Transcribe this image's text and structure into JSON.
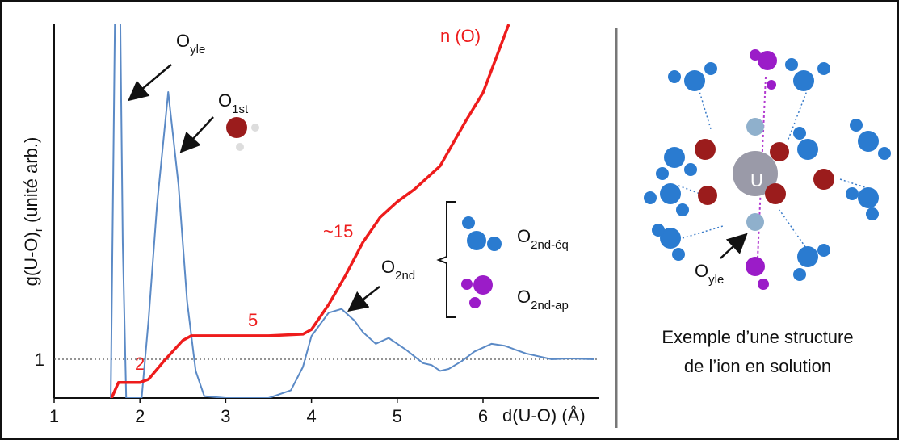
{
  "chart_data": {
    "type": "line",
    "ylabel": {
      "text": "g(U-O)",
      "sub": "r",
      "after": " (unité arb.)"
    },
    "xlabel": "d(U-O) (Å)",
    "xlim": [
      1,
      7.35
    ],
    "xticks": [
      1,
      2,
      3,
      4,
      5,
      6
    ],
    "ylim": [
      0,
      9.65
    ],
    "yticks": [
      1
    ],
    "y2lim": [
      1,
      25
    ],
    "series": [
      {
        "color": "#5b8ac6",
        "x": [
          1.66,
          1.72,
          1.76,
          1.8,
          1.84,
          2.0,
          2.02,
          2.1,
          2.2,
          2.33,
          2.45,
          2.55,
          2.65,
          2.75,
          3.0,
          3.5,
          3.76,
          3.9,
          4.0,
          4.2,
          4.35,
          4.5,
          4.6,
          4.75,
          4.9,
          5.1,
          5.3,
          5.4,
          5.5,
          5.6,
          5.75,
          5.9,
          6.1,
          6.25,
          6.5,
          6.8,
          7.0,
          7.3
        ],
        "values": [
          0,
          12,
          12,
          4,
          0,
          0,
          0,
          2,
          5,
          7.9,
          5.5,
          2.5,
          0.7,
          0.05,
          0,
          0,
          0.2,
          0.8,
          1.6,
          2.2,
          2.3,
          2.0,
          1.7,
          1.4,
          1.55,
          1.25,
          0.9,
          0.85,
          0.7,
          0.75,
          0.95,
          1.2,
          1.4,
          1.35,
          1.15,
          1.0,
          1.02,
          1.0
        ]
      },
      {
        "name": "n (O)",
        "color": "#ee1c1c",
        "axis": "y2",
        "x": [
          1.67,
          1.75,
          2.0,
          2.1,
          2.3,
          2.5,
          2.6,
          3.0,
          3.5,
          3.9,
          4.0,
          4.2,
          4.4,
          4.6,
          4.8,
          5.0,
          5.2,
          5.5,
          5.8,
          6.0,
          6.3
        ],
        "values": [
          1,
          2,
          2,
          2.2,
          3.5,
          4.7,
          5,
          5,
          5,
          5.1,
          5.4,
          7,
          8.9,
          11,
          12.6,
          13.6,
          14.4,
          15.9,
          18.8,
          20.6,
          25
        ]
      }
    ],
    "annotations": {
      "plateau_2": "2",
      "plateau_5": "5",
      "approx_15": "~15",
      "o_yle": {
        "text": "O",
        "sub": "yle"
      },
      "o_1st": {
        "text": "O",
        "sub": "1st"
      },
      "o_2nd": {
        "text": "O",
        "sub": "2nd"
      },
      "o_2nd_eq": {
        "text": "O",
        "sub": "2nd-éq"
      },
      "o_2nd_ap": {
        "text": "O",
        "sub": "2nd-ap"
      }
    }
  },
  "illustration": {
    "atom_u": "U",
    "o_yle": {
      "text": "O",
      "sub": "yle"
    },
    "caption": [
      "Exemple d’une structure",
      "de l’ion en solution"
    ]
  }
}
